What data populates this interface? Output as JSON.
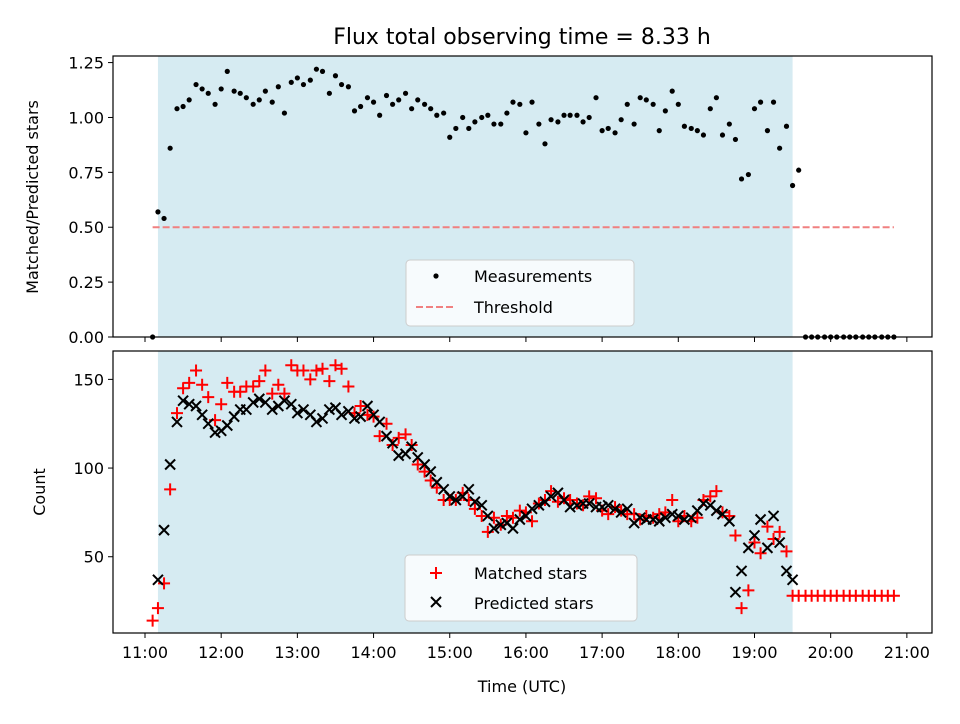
{
  "chart_data": [
    {
      "type": "scatter",
      "title": "Flux total observing time = 8.33 h",
      "xlabel": "",
      "ylabel": "Matched/Predicted stars",
      "xlim": [
        10.58,
        21.33
      ],
      "ylim": [
        0.0,
        1.28
      ],
      "yticks": [
        0.0,
        0.25,
        0.5,
        0.75,
        1.0,
        1.25
      ],
      "yticklabels": [
        "0.00",
        "0.25",
        "0.50",
        "0.75",
        "1.00",
        "1.25"
      ],
      "shaded_span": [
        11.17,
        19.5
      ],
      "legend": [
        "Measurements",
        "Threshold"
      ],
      "legend_position": "lower-center",
      "threshold": {
        "name": "Threshold",
        "y": 0.5,
        "x": [
          11.1,
          20.83
        ],
        "color": "#f08080"
      },
      "series": [
        {
          "name": "Measurements",
          "color": "#000000",
          "x": [
            11.1,
            11.17,
            11.25,
            11.33,
            11.42,
            11.5,
            11.58,
            11.67,
            11.75,
            11.83,
            11.92,
            12.0,
            12.08,
            12.17,
            12.25,
            12.33,
            12.42,
            12.5,
            12.58,
            12.67,
            12.75,
            12.83,
            12.92,
            13.0,
            13.08,
            13.17,
            13.25,
            13.33,
            13.42,
            13.5,
            13.58,
            13.67,
            13.75,
            13.83,
            13.92,
            14.0,
            14.08,
            14.17,
            14.25,
            14.33,
            14.42,
            14.5,
            14.58,
            14.67,
            14.75,
            14.83,
            14.92,
            15.0,
            15.08,
            15.17,
            15.25,
            15.33,
            15.42,
            15.5,
            15.58,
            15.67,
            15.75,
            15.83,
            15.92,
            16.0,
            16.08,
            16.17,
            16.25,
            16.33,
            16.42,
            16.5,
            16.58,
            16.67,
            16.75,
            16.83,
            16.92,
            17.0,
            17.08,
            17.17,
            17.25,
            17.33,
            17.42,
            17.5,
            17.58,
            17.67,
            17.75,
            17.83,
            17.92,
            18.0,
            18.08,
            18.17,
            18.25,
            18.33,
            18.42,
            18.5,
            18.58,
            18.67,
            18.75,
            18.83,
            18.92,
            19.0,
            19.08,
            19.17,
            19.25,
            19.33,
            19.42,
            19.5,
            19.58,
            19.67,
            19.75,
            19.83,
            19.92,
            20.0,
            20.08,
            20.17,
            20.25,
            20.33,
            20.42,
            20.5,
            20.58,
            20.67,
            20.75,
            20.83
          ],
          "y": [
            0.0,
            0.57,
            0.54,
            0.86,
            1.04,
            1.05,
            1.08,
            1.15,
            1.13,
            1.11,
            1.06,
            1.13,
            1.21,
            1.12,
            1.11,
            1.09,
            1.06,
            1.08,
            1.12,
            1.07,
            1.14,
            1.02,
            1.16,
            1.18,
            1.15,
            1.17,
            1.22,
            1.21,
            1.11,
            1.19,
            1.15,
            1.14,
            1.03,
            1.05,
            1.09,
            1.07,
            1.01,
            1.1,
            1.06,
            1.08,
            1.11,
            1.04,
            1.08,
            1.06,
            1.04,
            1.01,
            1.02,
            0.91,
            0.95,
            1.0,
            0.95,
            0.98,
            1.0,
            1.01,
            0.97,
            0.97,
            1.02,
            1.07,
            1.06,
            0.93,
            1.07,
            0.97,
            0.88,
            0.99,
            0.98,
            1.01,
            1.01,
            1.01,
            0.98,
            1.0,
            1.09,
            0.94,
            0.95,
            0.93,
            0.99,
            1.06,
            0.97,
            1.09,
            1.08,
            1.06,
            0.94,
            1.03,
            1.12,
            1.06,
            0.96,
            0.95,
            0.94,
            0.92,
            1.04,
            1.09,
            0.92,
            0.97,
            0.9,
            0.72,
            0.74,
            1.04,
            1.07,
            0.94,
            1.07,
            0.86,
            0.96,
            0.69,
            0.76,
            0.0,
            0.0,
            0.0,
            0.0,
            0.0,
            0.0,
            0.0,
            0.0,
            0.0,
            0.0,
            0.0,
            0.0,
            0.0,
            0.0,
            0.0
          ]
        }
      ]
    },
    {
      "type": "scatter",
      "title": "",
      "xlabel": "Time (UTC)",
      "ylabel": "Count",
      "xlim": [
        10.58,
        21.33
      ],
      "ylim": [
        7,
        166
      ],
      "xticks": [
        11,
        12,
        13,
        14,
        15,
        16,
        17,
        18,
        19,
        20,
        21
      ],
      "xticklabels": [
        "11:00",
        "12:00",
        "13:00",
        "14:00",
        "15:00",
        "16:00",
        "17:00",
        "18:00",
        "19:00",
        "20:00",
        "21:00"
      ],
      "yticks": [
        50,
        100,
        150
      ],
      "yticklabels": [
        "50",
        "100",
        "150"
      ],
      "shaded_span": [
        11.17,
        19.5
      ],
      "legend": [
        "Matched stars",
        "Predicted stars"
      ],
      "legend_position": "lower-center",
      "series": [
        {
          "name": "Matched stars",
          "marker": "plus",
          "color": "#ff0000",
          "x": [
            11.1,
            11.17,
            11.25,
            11.33,
            11.42,
            11.5,
            11.58,
            11.67,
            11.75,
            11.83,
            11.92,
            12.0,
            12.08,
            12.17,
            12.25,
            12.33,
            12.42,
            12.5,
            12.58,
            12.67,
            12.75,
            12.83,
            12.92,
            13.0,
            13.08,
            13.17,
            13.25,
            13.33,
            13.42,
            13.5,
            13.58,
            13.67,
            13.75,
            13.83,
            13.92,
            14.0,
            14.08,
            14.17,
            14.25,
            14.33,
            14.42,
            14.5,
            14.58,
            14.67,
            14.75,
            14.83,
            14.92,
            15.0,
            15.08,
            15.17,
            15.25,
            15.33,
            15.42,
            15.5,
            15.58,
            15.67,
            15.75,
            15.83,
            15.92,
            16.0,
            16.08,
            16.17,
            16.25,
            16.33,
            16.42,
            16.5,
            16.58,
            16.67,
            16.75,
            16.83,
            16.92,
            17.0,
            17.08,
            17.17,
            17.25,
            17.33,
            17.42,
            17.5,
            17.58,
            17.67,
            17.75,
            17.83,
            17.92,
            18.0,
            18.08,
            18.17,
            18.25,
            18.33,
            18.42,
            18.5,
            18.58,
            18.67,
            18.75,
            18.83,
            18.92,
            19.0,
            19.08,
            19.17,
            19.25,
            19.33,
            19.42,
            19.5,
            19.58,
            19.67,
            19.75,
            19.83,
            19.92,
            20.0,
            20.08,
            20.17,
            20.25,
            20.33,
            20.42,
            20.5,
            20.58,
            20.67,
            20.75,
            20.83
          ],
          "y": [
            14,
            21,
            35,
            88,
            131,
            145,
            148,
            155,
            147,
            140,
            127,
            136,
            148,
            143,
            143,
            146,
            146,
            149,
            155,
            142,
            147,
            142,
            158,
            155,
            155,
            150,
            155,
            156,
            149,
            158,
            156,
            146,
            131,
            135,
            130,
            129,
            118,
            125,
            113,
            117,
            119,
            113,
            102,
            98,
            93,
            89,
            82,
            82,
            82,
            86,
            82,
            77,
            73,
            64,
            72,
            68,
            73,
            72,
            76,
            75,
            70,
            80,
            82,
            87,
            81,
            83,
            82,
            80,
            79,
            84,
            83,
            76,
            74,
            78,
            76,
            74,
            74,
            71,
            73,
            72,
            74,
            75,
            82,
            70,
            73,
            70,
            72,
            82,
            84,
            87,
            75,
            73,
            62,
            21,
            31,
            58,
            52,
            67,
            60,
            64,
            53,
            28,
            28,
            28,
            28,
            28,
            28,
            28,
            28,
            28,
            28,
            28,
            28,
            28,
            28,
            28,
            28,
            28
          ],
          "x_inferred": true
        },
        {
          "name": "Predicted stars",
          "marker": "x",
          "color": "#000000",
          "x": [
            11.17,
            11.25,
            11.33,
            11.42,
            11.5,
            11.58,
            11.67,
            11.75,
            11.83,
            11.92,
            12.0,
            12.08,
            12.17,
            12.25,
            12.33,
            12.42,
            12.5,
            12.58,
            12.67,
            12.75,
            12.83,
            12.92,
            13.0,
            13.08,
            13.17,
            13.25,
            13.33,
            13.42,
            13.5,
            13.58,
            13.67,
            13.75,
            13.83,
            13.92,
            14.0,
            14.08,
            14.17,
            14.25,
            14.33,
            14.42,
            14.5,
            14.58,
            14.67,
            14.75,
            14.83,
            14.92,
            15.0,
            15.08,
            15.17,
            15.25,
            15.33,
            15.42,
            15.5,
            15.58,
            15.67,
            15.75,
            15.83,
            15.92,
            16.0,
            16.08,
            16.17,
            16.25,
            16.33,
            16.42,
            16.5,
            16.58,
            16.67,
            16.75,
            16.83,
            16.92,
            17.0,
            17.08,
            17.17,
            17.25,
            17.33,
            17.42,
            17.5,
            17.58,
            17.67,
            17.75,
            17.83,
            17.92,
            18.0,
            18.08,
            18.17,
            18.25,
            18.33,
            18.42,
            18.5,
            18.58,
            18.67,
            18.75,
            18.83,
            18.92,
            19.0,
            19.08,
            19.17,
            19.25,
            19.33,
            19.42,
            19.5
          ],
          "y": [
            37,
            65,
            102,
            126,
            138,
            136,
            135,
            130,
            125,
            120,
            121,
            124,
            129,
            133,
            133,
            137,
            139,
            137,
            133,
            135,
            138,
            136,
            131,
            133,
            130,
            126,
            128,
            133,
            134,
            130,
            132,
            128,
            129,
            135,
            130,
            126,
            118,
            114,
            107,
            108,
            112,
            106,
            102,
            98,
            92,
            88,
            84,
            82,
            84,
            88,
            81,
            79,
            73,
            66,
            68,
            69,
            66,
            71,
            73,
            77,
            79,
            81,
            84,
            86,
            82,
            78,
            79,
            80,
            80,
            78,
            78,
            79,
            77,
            75,
            77,
            69,
            72,
            71,
            71,
            70,
            72,
            74,
            73,
            71,
            72,
            76,
            80,
            79,
            76,
            74,
            70,
            30,
            42,
            55,
            62,
            71,
            55,
            73,
            58,
            42,
            37
          ]
        }
      ]
    }
  ]
}
